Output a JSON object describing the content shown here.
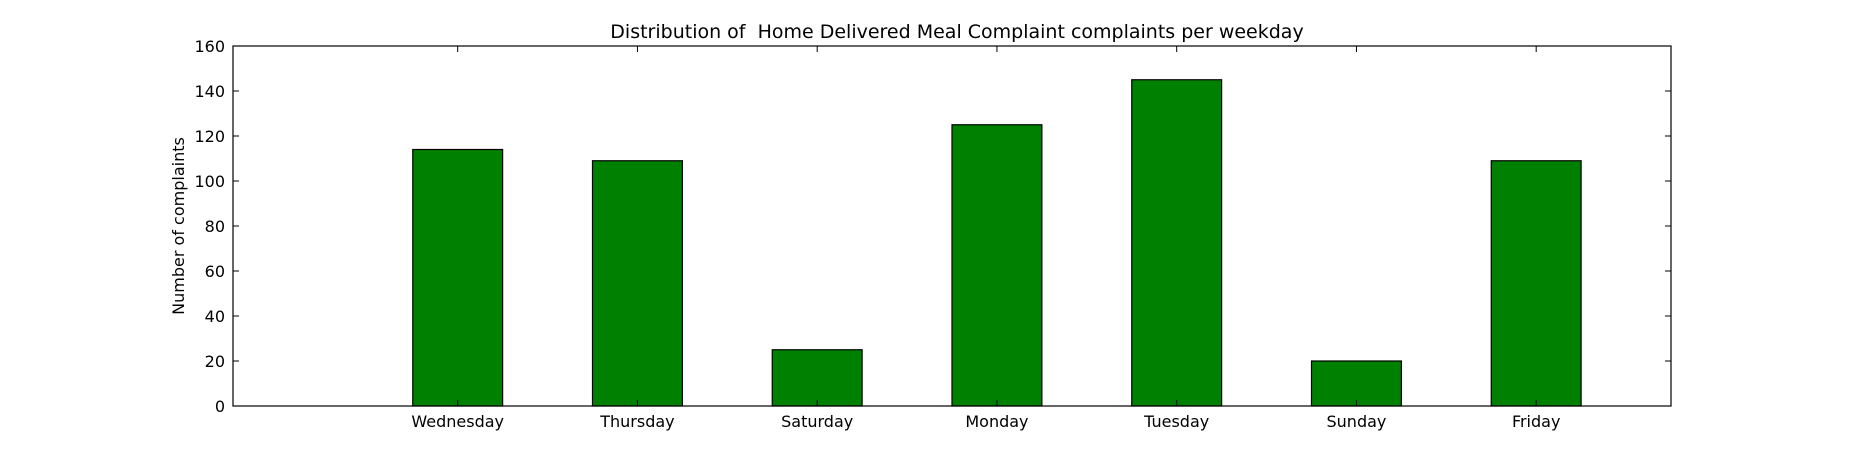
{
  "chart_data": {
    "type": "bar",
    "title": "Distribution of  Home Delivered Meal Complaint complaints per weekday",
    "xlabel": "",
    "ylabel": "Number of complaints",
    "categories": [
      "Wednesday",
      "Thursday",
      "Saturday",
      "Monday",
      "Tuesday",
      "Sunday",
      "Friday"
    ],
    "values": [
      114,
      109,
      25,
      125,
      145,
      20,
      109
    ],
    "ylim": [
      0,
      160
    ],
    "yticks": [
      0,
      20,
      40,
      60,
      80,
      100,
      120,
      140,
      160
    ],
    "grid": false,
    "bar_color": "#008000",
    "edge_color": "#000000"
  }
}
